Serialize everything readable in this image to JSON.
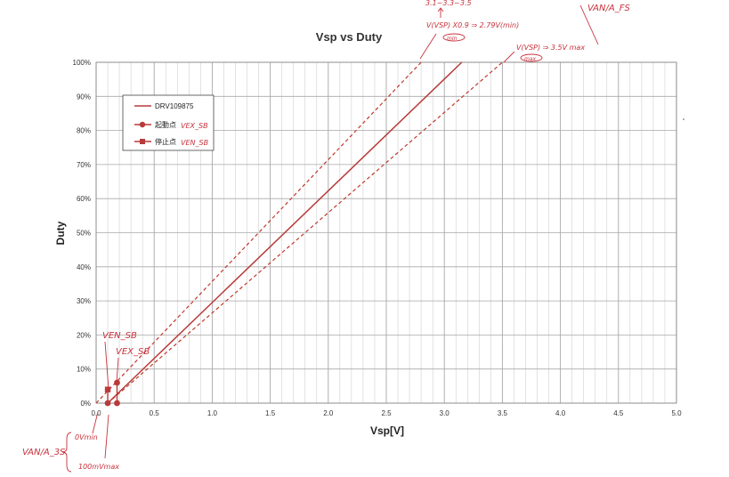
{
  "chart_data": {
    "type": "line",
    "title": "Vsp vs Duty",
    "xlabel": "Vsp[V]",
    "ylabel": "Duty",
    "xlim": [
      0,
      5.0
    ],
    "ylim": [
      0,
      100
    ],
    "x_ticks": [
      "0.0",
      "0.5",
      "1.0",
      "1.5",
      "2.0",
      "2.5",
      "3.0",
      "3.5",
      "4.0",
      "4.5",
      "5.0"
    ],
    "y_ticks": [
      "0%",
      "10%",
      "20%",
      "30%",
      "40%",
      "50%",
      "60%",
      "70%",
      "80%",
      "90%",
      "100%"
    ],
    "grid": true,
    "legend_position": "top-left",
    "series": [
      {
        "name": "DRV109875",
        "style": "solid",
        "color": "#b83a3a",
        "x": [
          0.1,
          3.15
        ],
        "y": [
          0,
          100
        ]
      },
      {
        "name": "",
        "style": "dashed",
        "color": "#c0392b",
        "x": [
          0.0,
          2.8
        ],
        "y": [
          0,
          100
        ]
      },
      {
        "name": "",
        "style": "dashed",
        "color": "#c0392b",
        "x": [
          0.1,
          3.5
        ],
        "y": [
          0,
          100
        ]
      }
    ],
    "markers": [
      {
        "name": "起動点",
        "shape": "circle",
        "color": "#b83a3a",
        "points": [
          {
            "x": 0.1,
            "y": 0
          },
          {
            "x": 0.18,
            "y": 6
          },
          {
            "x": 0.18,
            "y": 0
          }
        ]
      },
      {
        "name": "停止点",
        "shape": "square",
        "color": "#b83a3a",
        "points": [
          {
            "x": 0.1,
            "y": 4
          }
        ]
      }
    ],
    "legend": [
      {
        "label": "DRV109875",
        "marker": "line"
      },
      {
        "label": "起動点",
        "marker": "circle",
        "annotation": "VEX_SB"
      },
      {
        "label": "停止点",
        "marker": "square",
        "annotation": "VEN_SB"
      }
    ]
  },
  "annotations": {
    "top_left_range": "3.1~3.3~3.5",
    "lower_dashed": "V(VSP) X0.9 ⇒ 2.79V(min)",
    "lower_circle": "min",
    "upper_dashed": "V(VSP) ⇒ 3.5V max",
    "upper_circle": "max",
    "top_right": "VAN/A_FS",
    "ven_sb": "VEN_SB",
    "vex_sb": "VEX_SB",
    "van_3s": "VAN/A_3S",
    "ov_min": "0Vmin",
    "mv_max": "100mVmax"
  },
  "colors": {
    "accent": "#b83a3a",
    "handwriting": "#c8323c",
    "grid": "#c8c8c8"
  }
}
